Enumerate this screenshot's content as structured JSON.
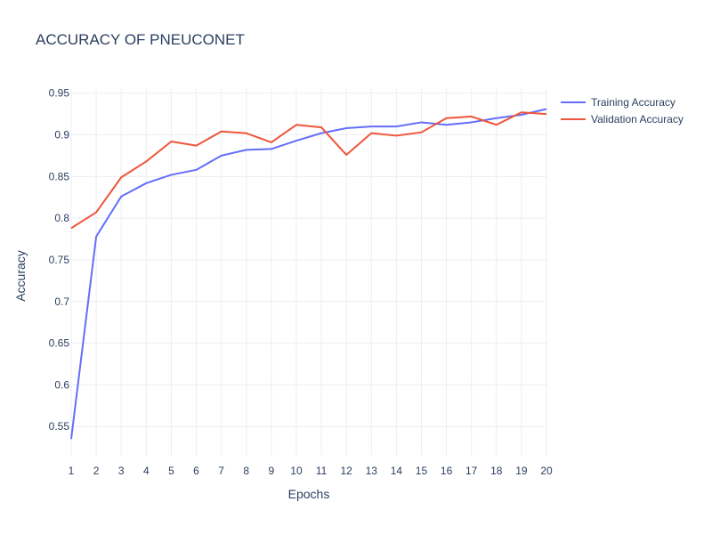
{
  "chart_data": {
    "type": "line",
    "title": "ACCURACY OF PNEUCONET",
    "xlabel": "Epochs",
    "ylabel": "Accuracy",
    "x": [
      1,
      2,
      3,
      4,
      5,
      6,
      7,
      8,
      9,
      10,
      11,
      12,
      13,
      14,
      15,
      16,
      17,
      18,
      19,
      20
    ],
    "xlim": [
      1,
      20
    ],
    "ylim": [
      0.515,
      0.955
    ],
    "yticks": [
      0.55,
      0.6,
      0.65,
      0.7,
      0.75,
      0.8,
      0.85,
      0.9,
      0.95
    ],
    "ytick_labels": [
      "0.55",
      "0.6",
      "0.65",
      "0.7",
      "0.75",
      "0.8",
      "0.85",
      "0.9",
      "0.95"
    ],
    "grid": true,
    "legend_position": "top-right",
    "series": [
      {
        "name": "Training Accuracy",
        "color": "#636efa",
        "values": [
          0.535,
          0.778,
          0.826,
          0.842,
          0.852,
          0.858,
          0.875,
          0.882,
          0.883,
          0.893,
          0.902,
          0.908,
          0.91,
          0.91,
          0.915,
          0.912,
          0.915,
          0.92,
          0.924,
          0.931
        ]
      },
      {
        "name": "Validation Accuracy",
        "color": "#ef553b",
        "values": [
          0.788,
          0.807,
          0.849,
          0.868,
          0.892,
          0.887,
          0.904,
          0.902,
          0.891,
          0.912,
          0.909,
          0.876,
          0.902,
          0.899,
          0.903,
          0.92,
          0.922,
          0.912,
          0.927,
          0.925
        ]
      }
    ]
  }
}
